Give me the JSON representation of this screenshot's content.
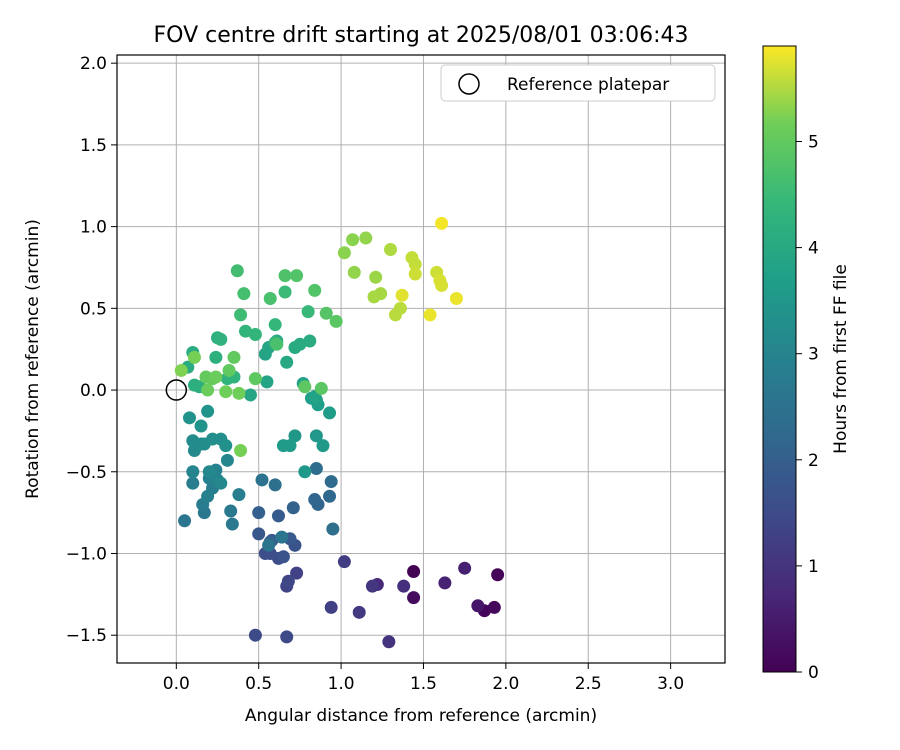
{
  "chart_data": {
    "type": "scatter",
    "title": "FOV centre drift starting at 2025/08/01 03:06:43",
    "xlabel": "Angular distance from reference (arcmin)",
    "ylabel": "Rotation from reference (arcmin)",
    "colorbar_label": "Hours from first FF file",
    "xlim": [
      -0.36,
      3.33
    ],
    "ylim": [
      -1.67,
      2.05
    ],
    "xticks": [
      "0.0",
      "0.5",
      "1.0",
      "1.5",
      "2.0",
      "2.5",
      "3.0"
    ],
    "yticks": [
      "−1.5",
      "−1.0",
      "−0.5",
      "0.0",
      "0.5",
      "1.0",
      "1.5",
      "2.0"
    ],
    "colorbar_ticks": [
      "0",
      "1",
      "2",
      "3",
      "4",
      "5"
    ],
    "colorbar_range": [
      0,
      5.9
    ],
    "colormap": "viridis",
    "grid": true,
    "legend": {
      "position": "top-right",
      "label": "Reference platepar"
    },
    "reference_point": {
      "x": 0.0,
      "y": 0.0
    },
    "points": [
      {
        "x": 1.44,
        "y": -1.11,
        "h": 0.05
      },
      {
        "x": 1.95,
        "y": -1.13,
        "h": 0.1
      },
      {
        "x": 1.87,
        "y": -1.35,
        "h": 0.1
      },
      {
        "x": 1.93,
        "y": -1.33,
        "h": 0.15
      },
      {
        "x": 1.44,
        "y": -1.27,
        "h": 0.2
      },
      {
        "x": 1.83,
        "y": -1.32,
        "h": 0.4
      },
      {
        "x": 1.75,
        "y": -1.09,
        "h": 0.6
      },
      {
        "x": 1.63,
        "y": -1.18,
        "h": 0.65
      },
      {
        "x": 1.22,
        "y": -1.19,
        "h": 0.8
      },
      {
        "x": 1.38,
        "y": -1.2,
        "h": 0.9
      },
      {
        "x": 1.29,
        "y": -1.54,
        "h": 1.0
      },
      {
        "x": 1.19,
        "y": -1.2,
        "h": 1.05
      },
      {
        "x": 1.11,
        "y": -1.36,
        "h": 1.1
      },
      {
        "x": 1.02,
        "y": -1.05,
        "h": 1.2
      },
      {
        "x": 0.94,
        "y": -1.33,
        "h": 1.25
      },
      {
        "x": 0.73,
        "y": -1.12,
        "h": 1.3
      },
      {
        "x": 0.67,
        "y": -1.2,
        "h": 1.35
      },
      {
        "x": 0.68,
        "y": -1.17,
        "h": 1.4
      },
      {
        "x": 0.67,
        "y": -1.51,
        "h": 1.45
      },
      {
        "x": 0.48,
        "y": -1.5,
        "h": 1.5
      },
      {
        "x": 0.62,
        "y": -1.03,
        "h": 1.55
      },
      {
        "x": 0.57,
        "y": -1.0,
        "h": 1.6
      },
      {
        "x": 0.54,
        "y": -1.0,
        "h": 1.6
      },
      {
        "x": 0.72,
        "y": -0.95,
        "h": 1.7
      },
      {
        "x": 0.65,
        "y": -1.02,
        "h": 1.7
      },
      {
        "x": 0.58,
        "y": -0.92,
        "h": 1.75
      },
      {
        "x": 0.5,
        "y": -0.88,
        "h": 1.8
      },
      {
        "x": 0.69,
        "y": -0.91,
        "h": 1.85
      },
      {
        "x": 0.62,
        "y": -0.77,
        "h": 1.9
      },
      {
        "x": 0.5,
        "y": -0.75,
        "h": 2.0
      },
      {
        "x": 0.57,
        "y": -0.93,
        "h": 2.05
      },
      {
        "x": 0.71,
        "y": -0.72,
        "h": 2.1
      },
      {
        "x": 0.86,
        "y": -0.7,
        "h": 2.15
      },
      {
        "x": 0.84,
        "y": -0.67,
        "h": 2.2
      },
      {
        "x": 0.93,
        "y": -0.65,
        "h": 2.25
      },
      {
        "x": 0.94,
        "y": -0.56,
        "h": 2.3
      },
      {
        "x": 0.85,
        "y": -0.48,
        "h": 2.35
      },
      {
        "x": 0.95,
        "y": -0.85,
        "h": 2.4
      },
      {
        "x": 0.6,
        "y": -0.58,
        "h": 2.45
      },
      {
        "x": 0.52,
        "y": -0.55,
        "h": 2.5
      },
      {
        "x": 0.56,
        "y": -0.95,
        "h": 2.55
      },
      {
        "x": 0.64,
        "y": -0.9,
        "h": 2.6
      },
      {
        "x": 0.05,
        "y": -0.8,
        "h": 2.6
      },
      {
        "x": 0.17,
        "y": -0.75,
        "h": 2.65
      },
      {
        "x": 0.34,
        "y": -0.82,
        "h": 2.7
      },
      {
        "x": 0.33,
        "y": -0.74,
        "h": 2.7
      },
      {
        "x": 0.16,
        "y": -0.7,
        "h": 2.75
      },
      {
        "x": 0.22,
        "y": -0.6,
        "h": 2.8
      },
      {
        "x": 0.1,
        "y": -0.57,
        "h": 2.8
      },
      {
        "x": 0.38,
        "y": -0.64,
        "h": 2.85
      },
      {
        "x": 0.19,
        "y": -0.65,
        "h": 2.9
      },
      {
        "x": 0.2,
        "y": -0.54,
        "h": 2.9
      },
      {
        "x": 0.24,
        "y": -0.49,
        "h": 2.95
      },
      {
        "x": 0.1,
        "y": -0.5,
        "h": 3.0
      },
      {
        "x": 0.25,
        "y": -0.55,
        "h": 3.0
      },
      {
        "x": 0.31,
        "y": -0.43,
        "h": 3.05
      },
      {
        "x": 0.2,
        "y": -0.5,
        "h": 3.1
      },
      {
        "x": 0.27,
        "y": -0.57,
        "h": 3.1
      },
      {
        "x": 0.11,
        "y": -0.37,
        "h": 3.15
      },
      {
        "x": 0.1,
        "y": -0.31,
        "h": 3.2
      },
      {
        "x": 0.15,
        "y": -0.33,
        "h": 3.2
      },
      {
        "x": 0.17,
        "y": -0.33,
        "h": 3.25
      },
      {
        "x": 0.22,
        "y": -0.3,
        "h": 3.3
      },
      {
        "x": 0.27,
        "y": -0.3,
        "h": 3.3
      },
      {
        "x": 0.3,
        "y": -0.34,
        "h": 3.35
      },
      {
        "x": 0.08,
        "y": -0.17,
        "h": 3.4
      },
      {
        "x": 0.15,
        "y": -0.22,
        "h": 3.4
      },
      {
        "x": 0.19,
        "y": -0.13,
        "h": 3.45
      },
      {
        "x": 0.72,
        "y": -0.28,
        "h": 3.5
      },
      {
        "x": 0.85,
        "y": -0.28,
        "h": 3.5
      },
      {
        "x": 0.89,
        "y": -0.34,
        "h": 3.55
      },
      {
        "x": 0.78,
        "y": -0.5,
        "h": 3.55
      },
      {
        "x": 0.65,
        "y": -0.34,
        "h": 3.6
      },
      {
        "x": 0.69,
        "y": -0.34,
        "h": 3.6
      },
      {
        "x": 0.93,
        "y": -0.14,
        "h": 3.65
      },
      {
        "x": 0.82,
        "y": -0.05,
        "h": 3.7
      },
      {
        "x": 0.86,
        "y": -0.09,
        "h": 3.7
      },
      {
        "x": 0.85,
        "y": -0.06,
        "h": 3.75
      },
      {
        "x": 0.77,
        "y": 0.04,
        "h": 3.8
      },
      {
        "x": 0.84,
        "y": -0.04,
        "h": 3.8
      },
      {
        "x": 0.54,
        "y": 0.22,
        "h": 3.85
      },
      {
        "x": 0.55,
        "y": 0.05,
        "h": 3.85
      },
      {
        "x": 0.45,
        "y": -0.03,
        "h": 3.9
      },
      {
        "x": 0.56,
        "y": 0.26,
        "h": 3.9
      },
      {
        "x": 0.61,
        "y": 0.3,
        "h": 3.95
      },
      {
        "x": 0.67,
        "y": 0.17,
        "h": 3.95
      },
      {
        "x": 0.72,
        "y": 0.26,
        "h": 4.0
      },
      {
        "x": 0.81,
        "y": 0.3,
        "h": 4.05
      },
      {
        "x": 0.75,
        "y": 0.28,
        "h": 4.05
      },
      {
        "x": 0.07,
        "y": 0.14,
        "h": 4.1
      },
      {
        "x": 0.1,
        "y": 0.23,
        "h": 4.1
      },
      {
        "x": 0.11,
        "y": 0.03,
        "h": 4.15
      },
      {
        "x": 0.14,
        "y": 0.02,
        "h": 4.15
      },
      {
        "x": 0.24,
        "y": 0.2,
        "h": 4.2
      },
      {
        "x": 0.25,
        "y": 0.32,
        "h": 4.2
      },
      {
        "x": 0.27,
        "y": 0.31,
        "h": 4.25
      },
      {
        "x": 0.31,
        "y": 0.07,
        "h": 4.25
      },
      {
        "x": 0.35,
        "y": 0.08,
        "h": 4.3
      },
      {
        "x": 0.42,
        "y": 0.36,
        "h": 4.35
      },
      {
        "x": 0.48,
        "y": 0.34,
        "h": 4.35
      },
      {
        "x": 0.6,
        "y": 0.4,
        "h": 4.4
      },
      {
        "x": 0.6,
        "y": 0.29,
        "h": 4.4
      },
      {
        "x": 0.8,
        "y": 0.48,
        "h": 4.45
      },
      {
        "x": 0.66,
        "y": 0.6,
        "h": 4.5
      },
      {
        "x": 0.39,
        "y": 0.46,
        "h": 4.55
      },
      {
        "x": 0.37,
        "y": 0.73,
        "h": 4.6
      },
      {
        "x": 0.41,
        "y": 0.59,
        "h": 4.65
      },
      {
        "x": 0.57,
        "y": 0.56,
        "h": 4.7
      },
      {
        "x": 0.61,
        "y": 0.28,
        "h": 4.7
      },
      {
        "x": 0.66,
        "y": 0.7,
        "h": 4.75
      },
      {
        "x": 0.73,
        "y": 0.7,
        "h": 4.8
      },
      {
        "x": 0.84,
        "y": 0.61,
        "h": 4.8
      },
      {
        "x": 0.91,
        "y": 0.47,
        "h": 4.85
      },
      {
        "x": 0.97,
        "y": 0.42,
        "h": 4.9
      },
      {
        "x": 0.88,
        "y": 0.01,
        "h": 4.9
      },
      {
        "x": 0.78,
        "y": 0.02,
        "h": 4.95
      },
      {
        "x": 0.48,
        "y": 0.07,
        "h": 4.95
      },
      {
        "x": 0.35,
        "y": 0.2,
        "h": 5.0
      },
      {
        "x": 0.32,
        "y": 0.12,
        "h": 5.0
      },
      {
        "x": 0.18,
        "y": 0.08,
        "h": 5.05
      },
      {
        "x": 0.22,
        "y": 0.07,
        "h": 5.05
      },
      {
        "x": 0.24,
        "y": 0.08,
        "h": 5.1
      },
      {
        "x": 0.19,
        "y": 0.0,
        "h": 5.1
      },
      {
        "x": 0.3,
        "y": -0.01,
        "h": 5.15
      },
      {
        "x": 0.38,
        "y": -0.02,
        "h": 5.15
      },
      {
        "x": 0.39,
        "y": -0.37,
        "h": 5.2
      },
      {
        "x": 0.11,
        "y": 0.2,
        "h": 5.2
      },
      {
        "x": 0.03,
        "y": 0.12,
        "h": 5.25
      },
      {
        "x": 1.02,
        "y": 0.84,
        "h": 5.3
      },
      {
        "x": 1.07,
        "y": 0.92,
        "h": 5.3
      },
      {
        "x": 1.15,
        "y": 0.93,
        "h": 5.35
      },
      {
        "x": 1.08,
        "y": 0.72,
        "h": 5.35
      },
      {
        "x": 1.21,
        "y": 0.69,
        "h": 5.4
      },
      {
        "x": 1.2,
        "y": 0.57,
        "h": 5.45
      },
      {
        "x": 1.24,
        "y": 0.59,
        "h": 5.45
      },
      {
        "x": 1.3,
        "y": 0.86,
        "h": 5.5
      },
      {
        "x": 1.33,
        "y": 0.46,
        "h": 5.55
      },
      {
        "x": 1.36,
        "y": 0.5,
        "h": 5.55
      },
      {
        "x": 1.43,
        "y": 0.81,
        "h": 5.6
      },
      {
        "x": 1.45,
        "y": 0.77,
        "h": 5.6
      },
      {
        "x": 1.45,
        "y": 0.71,
        "h": 5.65
      },
      {
        "x": 1.58,
        "y": 0.72,
        "h": 5.65
      },
      {
        "x": 1.6,
        "y": 0.67,
        "h": 5.7
      },
      {
        "x": 1.61,
        "y": 0.64,
        "h": 5.7
      },
      {
        "x": 1.37,
        "y": 0.58,
        "h": 5.75
      },
      {
        "x": 1.54,
        "y": 0.46,
        "h": 5.8
      },
      {
        "x": 1.7,
        "y": 0.56,
        "h": 5.8
      },
      {
        "x": 1.61,
        "y": 1.02,
        "h": 5.85
      }
    ]
  }
}
